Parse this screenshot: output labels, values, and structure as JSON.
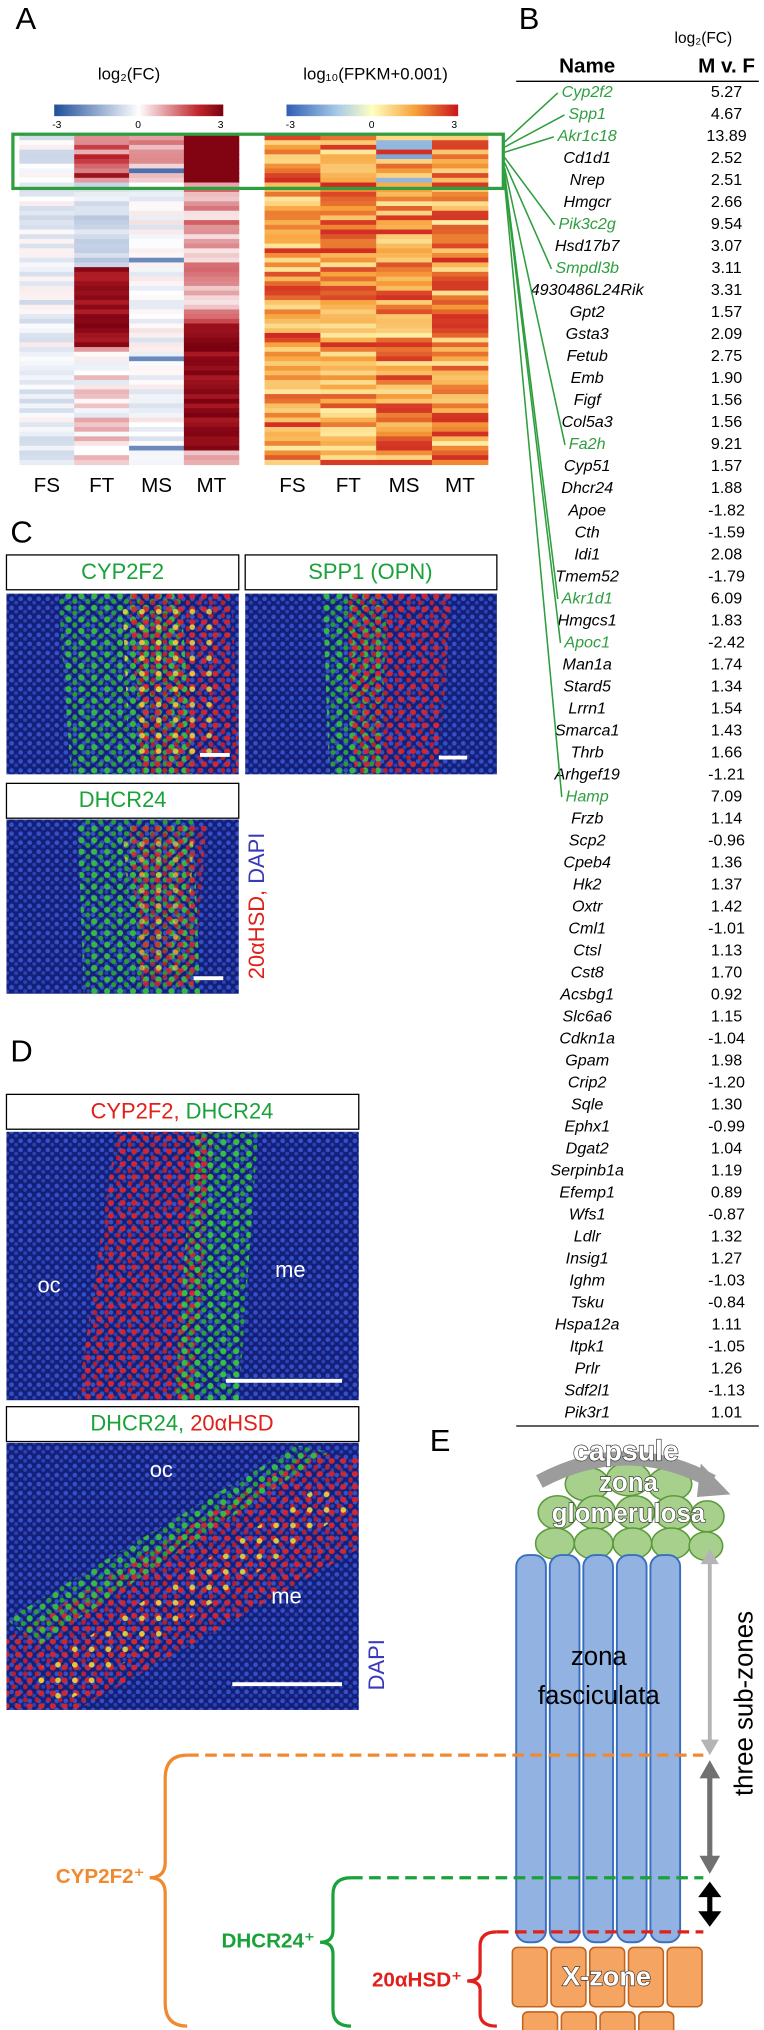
{
  "panel_a": {
    "label": "A",
    "heatmaps": [
      {
        "title": "log₂(FC)",
        "colorbar_ticks": [
          "-3",
          "0",
          "3"
        ],
        "columns": [
          "FS",
          "FT",
          "MS",
          "MT"
        ]
      },
      {
        "title": "log₁₀(FPKM+0.001)",
        "colorbar_ticks": [
          "-3",
          "0",
          "3"
        ],
        "columns": [
          "FS",
          "FT",
          "MS",
          "MT"
        ]
      }
    ]
  },
  "panel_b": {
    "label": "B",
    "value_header": "log₂(FC)",
    "column_headers": [
      "Name",
      "M v. F"
    ],
    "highlight_color": "#2e9e3e",
    "rows": [
      {
        "name": "Cyp2f2",
        "value": "5.27",
        "color": "#2e9e3e"
      },
      {
        "name": "Spp1",
        "value": "4.67",
        "color": "#2e9e3e"
      },
      {
        "name": "Akr1c18",
        "value": "13.89",
        "color": "#2e9e3e"
      },
      {
        "name": "Cd1d1",
        "value": "2.52",
        "color": "#000000"
      },
      {
        "name": "Nrep",
        "value": "2.51",
        "color": "#000000"
      },
      {
        "name": "Hmgcr",
        "value": "2.66",
        "color": "#000000"
      },
      {
        "name": "Pik3c2g",
        "value": "9.54",
        "color": "#2e9e3e"
      },
      {
        "name": "Hsd17b7",
        "value": "3.07",
        "color": "#000000"
      },
      {
        "name": "Smpdl3b",
        "value": "3.11",
        "color": "#2e9e3e"
      },
      {
        "name": "4930486L24Rik",
        "value": "3.31",
        "color": "#000000"
      },
      {
        "name": "Gpt2",
        "value": "1.57",
        "color": "#000000"
      },
      {
        "name": "Gsta3",
        "value": "2.09",
        "color": "#000000"
      },
      {
        "name": "Fetub",
        "value": "2.75",
        "color": "#000000"
      },
      {
        "name": "Emb",
        "value": "1.90",
        "color": "#000000"
      },
      {
        "name": "Figf",
        "value": "1.56",
        "color": "#000000"
      },
      {
        "name": "Col5a3",
        "value": "1.56",
        "color": "#000000"
      },
      {
        "name": "Fa2h",
        "value": "9.21",
        "color": "#2e9e3e"
      },
      {
        "name": "Cyp51",
        "value": "1.57",
        "color": "#000000"
      },
      {
        "name": "Dhcr24",
        "value": "1.88",
        "color": "#000000"
      },
      {
        "name": "Apoe",
        "value": "-1.82",
        "color": "#000000"
      },
      {
        "name": "Cth",
        "value": "-1.59",
        "color": "#000000"
      },
      {
        "name": "Idi1",
        "value": "2.08",
        "color": "#000000"
      },
      {
        "name": "Tmem52",
        "value": "-1.79",
        "color": "#000000"
      },
      {
        "name": "Akr1d1",
        "value": "6.09",
        "color": "#2e9e3e"
      },
      {
        "name": "Hmgcs1",
        "value": "1.83",
        "color": "#000000"
      },
      {
        "name": "Apoc1",
        "value": "-2.42",
        "color": "#2e9e3e"
      },
      {
        "name": "Man1a",
        "value": "1.74",
        "color": "#000000"
      },
      {
        "name": "Stard5",
        "value": "1.34",
        "color": "#000000"
      },
      {
        "name": "Lrrn1",
        "value": "1.54",
        "color": "#000000"
      },
      {
        "name": "Smarca1",
        "value": "1.43",
        "color": "#000000"
      },
      {
        "name": "Thrb",
        "value": "1.66",
        "color": "#000000"
      },
      {
        "name": "Arhgef19",
        "value": "-1.21",
        "color": "#000000"
      },
      {
        "name": "Hamp",
        "value": "7.09",
        "color": "#2e9e3e"
      },
      {
        "name": "Frzb",
        "value": "1.14",
        "color": "#000000"
      },
      {
        "name": "Scp2",
        "value": "-0.96",
        "color": "#000000"
      },
      {
        "name": "Cpeb4",
        "value": "1.36",
        "color": "#000000"
      },
      {
        "name": "Hk2",
        "value": "1.37",
        "color": "#000000"
      },
      {
        "name": "Oxtr",
        "value": "1.42",
        "color": "#000000"
      },
      {
        "name": "Cml1",
        "value": "-1.01",
        "color": "#000000"
      },
      {
        "name": "Ctsl",
        "value": "1.13",
        "color": "#000000"
      },
      {
        "name": "Cst8",
        "value": "1.70",
        "color": "#000000"
      },
      {
        "name": "Acsbg1",
        "value": "0.92",
        "color": "#000000"
      },
      {
        "name": "Slc6a6",
        "value": "1.15",
        "color": "#000000"
      },
      {
        "name": "Cdkn1a",
        "value": "-1.04",
        "color": "#000000"
      },
      {
        "name": "Gpam",
        "value": "1.98",
        "color": "#000000"
      },
      {
        "name": "Crip2",
        "value": "-1.20",
        "color": "#000000"
      },
      {
        "name": "Sqle",
        "value": "1.30",
        "color": "#000000"
      },
      {
        "name": "Ephx1",
        "value": "-0.99",
        "color": "#000000"
      },
      {
        "name": "Dgat2",
        "value": "1.04",
        "color": "#000000"
      },
      {
        "name": "Serpinb1a",
        "value": "1.19",
        "color": "#000000"
      },
      {
        "name": "Efemp1",
        "value": "0.89",
        "color": "#000000"
      },
      {
        "name": "Wfs1",
        "value": "-0.87",
        "color": "#000000"
      },
      {
        "name": "Ldlr",
        "value": "1.32",
        "color": "#000000"
      },
      {
        "name": "Insig1",
        "value": "1.27",
        "color": "#000000"
      },
      {
        "name": "Ighm",
        "value": "-1.03",
        "color": "#000000"
      },
      {
        "name": "Tsku",
        "value": "-0.84",
        "color": "#000000"
      },
      {
        "name": "Hspa12a",
        "value": "1.11",
        "color": "#000000"
      },
      {
        "name": "Itpk1",
        "value": "-1.05",
        "color": "#000000"
      },
      {
        "name": "Prlr",
        "value": "1.26",
        "color": "#000000"
      },
      {
        "name": "Sdf2l1",
        "value": "-1.13",
        "color": "#000000"
      },
      {
        "name": "Pik3r1",
        "value": "1.01",
        "color": "#000000"
      }
    ]
  },
  "panel_c": {
    "label": "C",
    "images": [
      {
        "title": "CYP2F2"
      },
      {
        "title": "SPP1 (OPN)"
      },
      {
        "title": "DHCR24"
      }
    ],
    "side_label": {
      "stain": "20αHSD",
      "separator": ", ",
      "counterstain": "DAPI",
      "stain_color": "#e0201b",
      "counterstain_color": "#3a3ab8"
    }
  },
  "panel_d": {
    "label": "D",
    "images": [
      {
        "title_parts": [
          {
            "text": "CYP2F2",
            "color": "#e0201b"
          },
          {
            "text": ", ",
            "color": "#e0201b"
          },
          {
            "text": "DHCR24",
            "color": "#1aa23a"
          }
        ],
        "regions": [
          "oc",
          "me"
        ]
      },
      {
        "title_parts": [
          {
            "text": "DHCR24",
            "color": "#1aa23a"
          },
          {
            "text": ", ",
            "color": "#1aa23a"
          },
          {
            "text": "20αHSD",
            "color": "#e0201b"
          }
        ],
        "regions": [
          "oc",
          "me"
        ]
      }
    ],
    "side_label": {
      "text": "DAPI",
      "color": "#3a3ab8"
    }
  },
  "panel_e": {
    "label": "E",
    "capsule": "capsule",
    "zona_glomerulosa": [
      "zona",
      "glomerulosa"
    ],
    "zona_fasciculata": [
      "zona",
      "fasciculata"
    ],
    "x_zone": "X-zone",
    "sub_zones_label": "three sub-zones",
    "markers": [
      {
        "text": "CYP2F2⁺",
        "color": "#f08a30"
      },
      {
        "text": "DHCR24⁺",
        "color": "#1aa23a"
      },
      {
        "text": "20αHSD⁺",
        "color": "#e0201b"
      }
    ]
  }
}
